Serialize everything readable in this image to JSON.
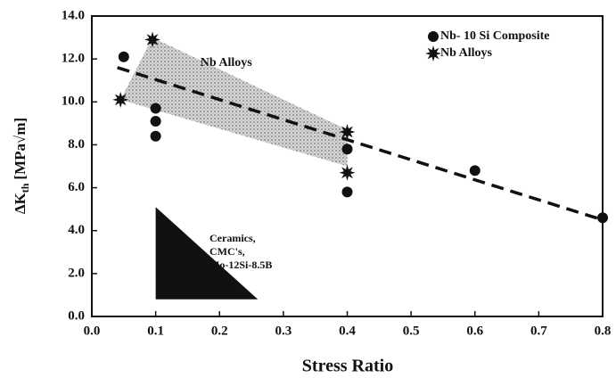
{
  "chart_data": {
    "type": "scatter",
    "xlabel": "Stress Ratio",
    "ylabel": {
      "main": "ΔK",
      "sub": "th",
      "unit": "[MPa√m]"
    },
    "xlim": [
      0,
      0.8
    ],
    "ylim": [
      0,
      14
    ],
    "xticks": [
      {
        "value": 0,
        "label": "0.0"
      },
      0.1,
      0.2,
      0.3,
      0.4,
      0.5,
      0.6,
      0.7,
      0.8
    ],
    "yticks": [
      {
        "value": 0,
        "label": "0.0"
      },
      {
        "value": 2,
        "label": "2.0"
      },
      {
        "value": 4,
        "label": "4.0"
      },
      {
        "value": 6,
        "label": "6.0"
      },
      {
        "value": 8,
        "label": "8.0"
      },
      {
        "value": 10,
        "label": "10.0"
      },
      {
        "value": 12,
        "label": "12.0"
      },
      {
        "value": 14,
        "label": "14.0"
      }
    ],
    "legend": "upper right",
    "series": [
      {
        "name": "Nb- 10 Si Composite",
        "marker": "circle",
        "color": "#111111",
        "x": [
          0.05,
          0.1,
          0.1,
          0.1,
          0.4,
          0.4,
          0.6,
          0.8
        ],
        "values": [
          12.1,
          9.7,
          9.1,
          8.4,
          7.8,
          5.8,
          6.8,
          4.6
        ]
      },
      {
        "name": "Nb Alloys",
        "marker": "star",
        "color": "#111111",
        "x": [
          0.045,
          0.095,
          0.4,
          0.4
        ],
        "values": [
          10.1,
          12.9,
          8.6,
          6.7
        ]
      }
    ],
    "trend_line": {
      "x": [
        0.04,
        0.8
      ],
      "values": [
        11.6,
        4.5
      ],
      "color": "#111111"
    },
    "band": {
      "label": "Nb Alloys",
      "x": [
        0.045,
        0.095,
        0.4,
        0.4
      ],
      "values": [
        10.1,
        13.0,
        8.7,
        7.0
      ],
      "color": "#bdbdbd"
    },
    "region": {
      "label": [
        "Ceramics,",
        "CMC's,",
        "Mo-12Si-8.5B"
      ],
      "x": [
        0.1,
        0.1,
        0.26
      ],
      "values": [
        5.1,
        0.8,
        0.8
      ],
      "color": "#111111"
    }
  }
}
